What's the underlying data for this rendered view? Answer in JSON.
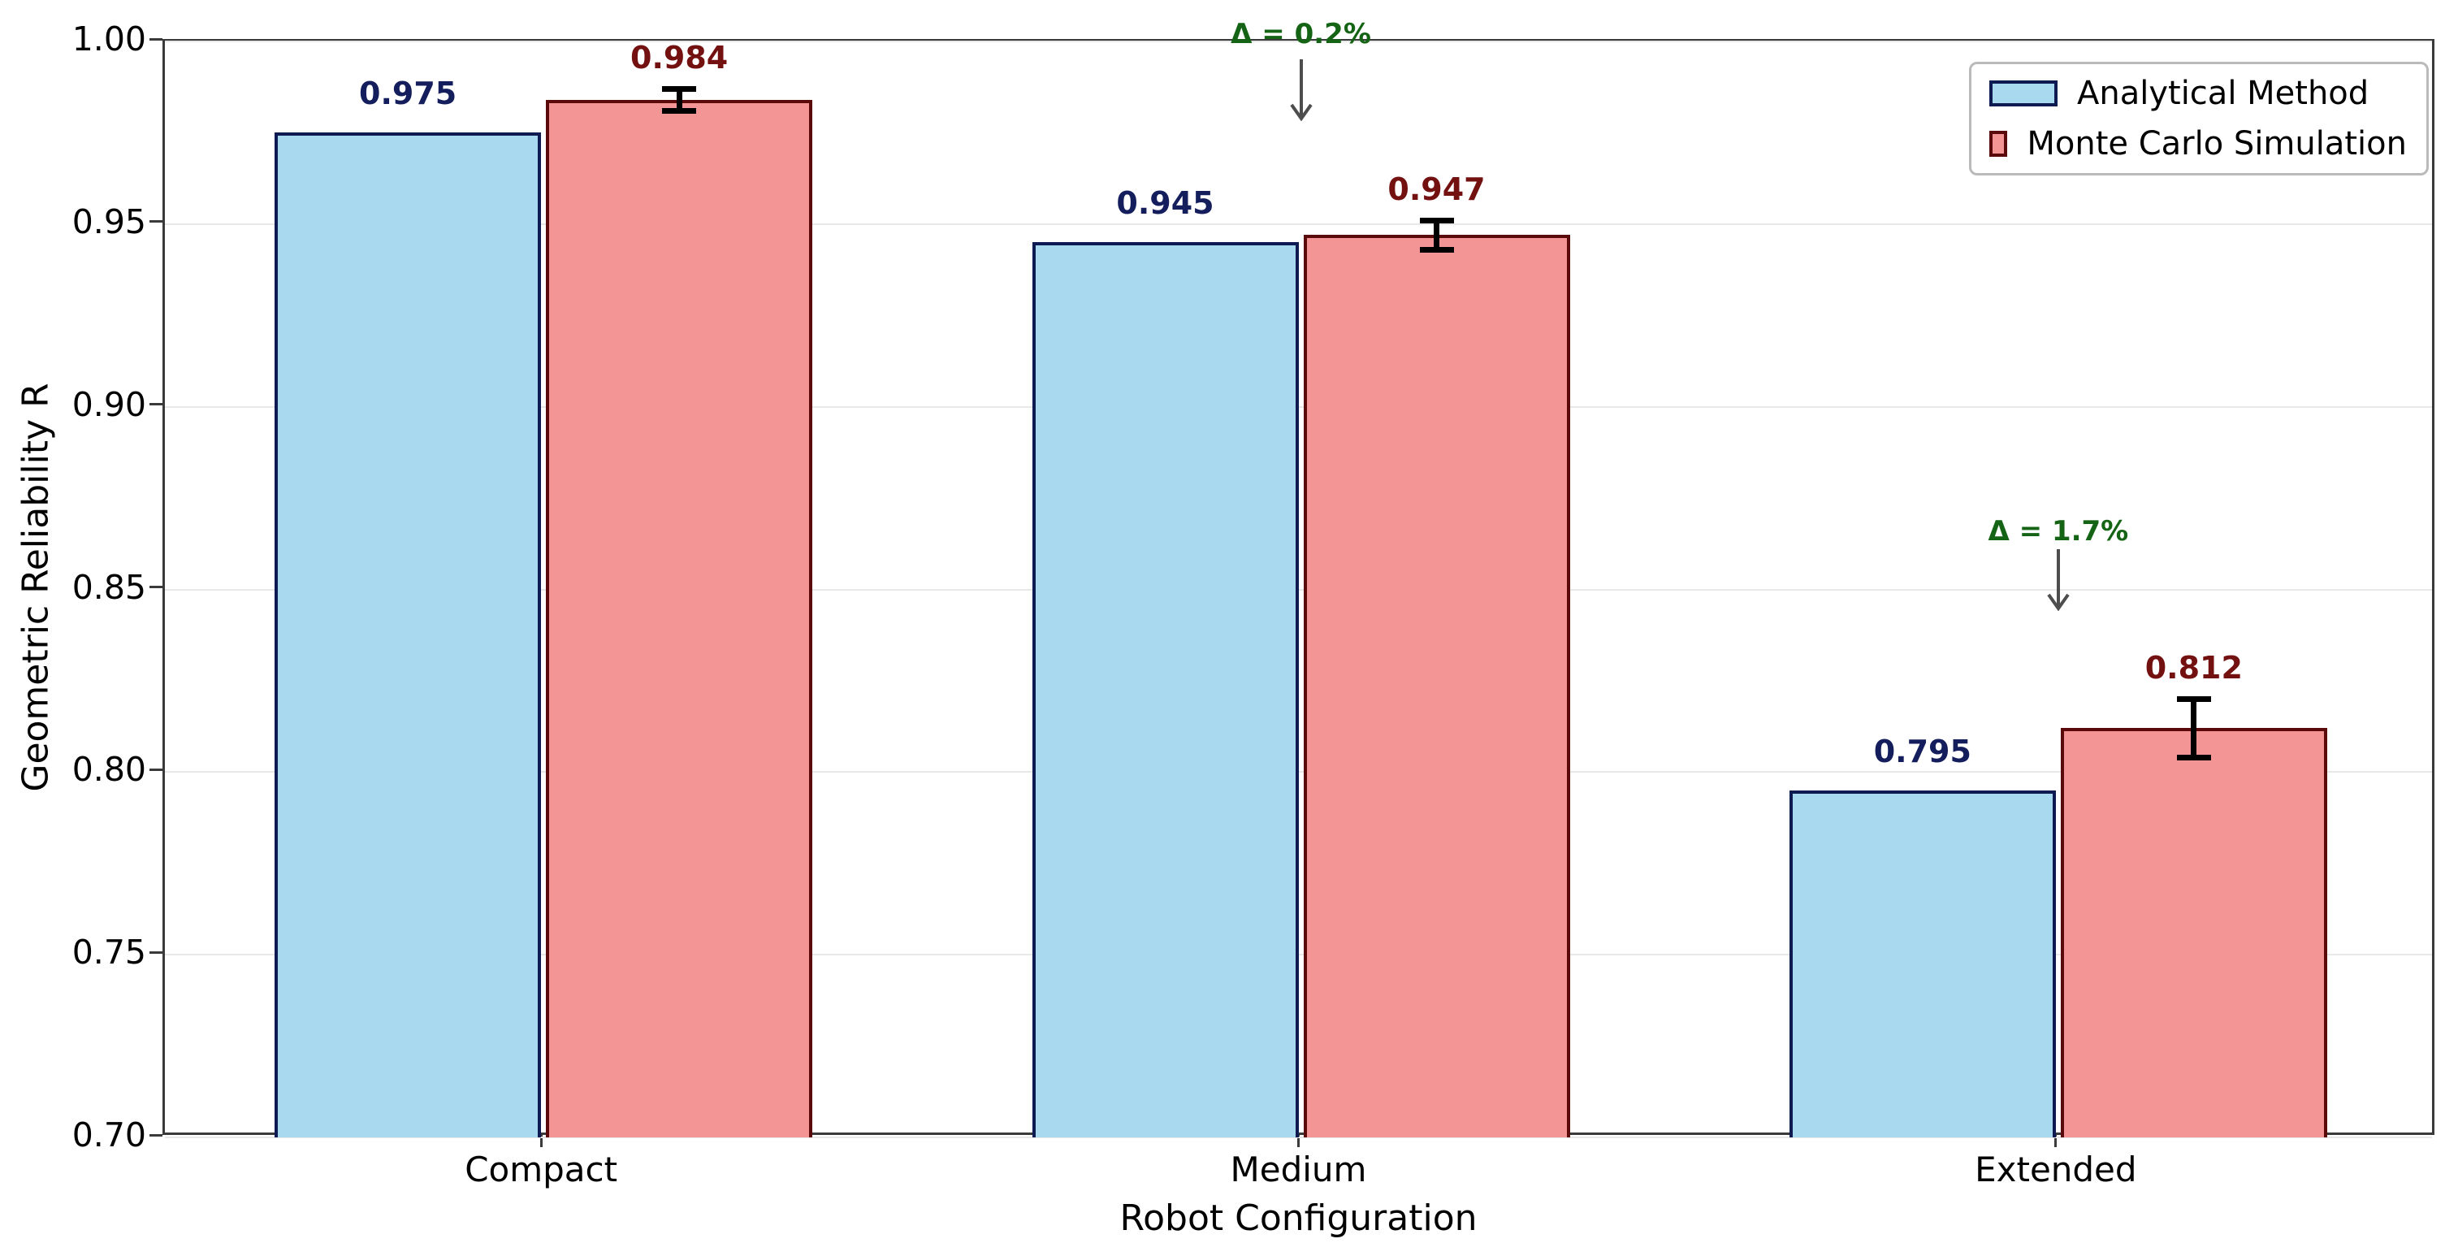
{
  "chart_data": {
    "type": "bar",
    "title": "",
    "xlabel": "Robot Configuration",
    "ylabel": "Geometric Reliability R",
    "ylim": [
      0.7,
      1.0
    ],
    "ytick_step": 0.05,
    "ytick_labels": [
      "0.70",
      "0.75",
      "0.80",
      "0.85",
      "0.90",
      "0.95",
      "1.00"
    ],
    "categories": [
      "Compact",
      "Medium",
      "Extended"
    ],
    "series": [
      {
        "name": "Analytical Method",
        "values": [
          0.975,
          0.945,
          0.795
        ],
        "value_labels": [
          "0.975",
          "0.945",
          "0.795"
        ],
        "fill": "#a8d9ee",
        "edge": "#0d1b52",
        "label_color": "#141e5c"
      },
      {
        "name": "Monte Carlo Simulation",
        "values": [
          0.984,
          0.947,
          0.812
        ],
        "value_labels": [
          "0.984",
          "0.947",
          "0.812"
        ],
        "errors": [
          0.003,
          0.004,
          0.008
        ],
        "fill": "#f49595",
        "edge": "#5a0a0a",
        "label_color": "#731111"
      }
    ],
    "annotations": [
      {
        "category_index": 1,
        "label": "Δ = 0.2%",
        "text_v": 1.002,
        "arrow_start_v": 0.995,
        "arrow_tip_v": 0.979
      },
      {
        "category_index": 2,
        "label": "Δ = 1.7%",
        "text_v": 0.866,
        "arrow_start_v": 0.861,
        "arrow_tip_v": 0.845
      }
    ],
    "legend": {
      "position": "upper right",
      "entries": [
        "Analytical Method",
        "Monte Carlo Simulation"
      ]
    },
    "grid": true
  },
  "palette": {
    "background": "#ffffff",
    "grid": "#e8e8e8",
    "spine": "#3a3a3a",
    "tick_text": "#000000",
    "annotation_green": "#156415",
    "arrow_gray": "#4d4d4d",
    "error_bar": "#000000",
    "legend_border": "#bababa"
  }
}
